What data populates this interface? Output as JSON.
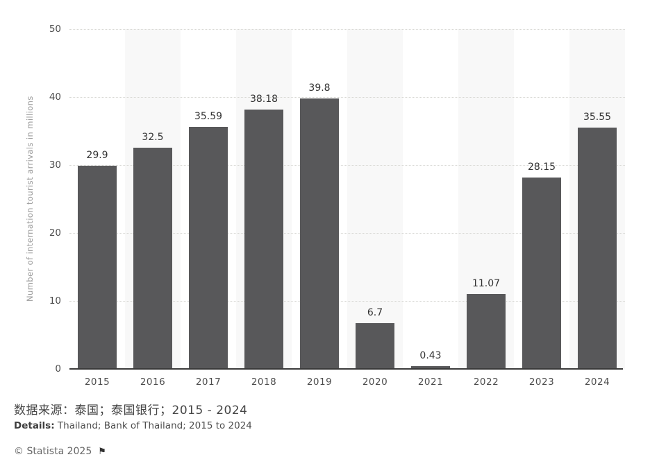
{
  "chart_data": {
    "type": "bar",
    "categories": [
      "2015",
      "2016",
      "2017",
      "2018",
      "2019",
      "2020",
      "2021",
      "2022",
      "2023",
      "2024"
    ],
    "values": [
      29.9,
      32.5,
      35.59,
      38.18,
      39.8,
      6.7,
      0.43,
      11.07,
      28.15,
      35.55
    ],
    "value_labels": [
      "29.9",
      "32.5",
      "35.59",
      "38.18",
      "39.8",
      "6.7",
      "0.43",
      "11.07",
      "28.15",
      "35.55"
    ],
    "title": "",
    "xlabel": "",
    "ylabel": "Number of internation tourist arrivals in millions",
    "yticks": [
      0,
      10,
      20,
      30,
      40,
      50
    ],
    "ylim": [
      0,
      50
    ],
    "grid": "dotted horizontal",
    "legend": "none",
    "bar_color": "#58585a",
    "stripe_color": "#f8f8f8"
  },
  "footer": {
    "source_zh": "数据来源：泰国；泰国银行；2015 - 2024",
    "details_label": "Details:",
    "details_text": " Thailand; Bank of Thailand; 2015 to 2024",
    "copyright": "© Statista 2025",
    "flag_icon": "⚑"
  }
}
